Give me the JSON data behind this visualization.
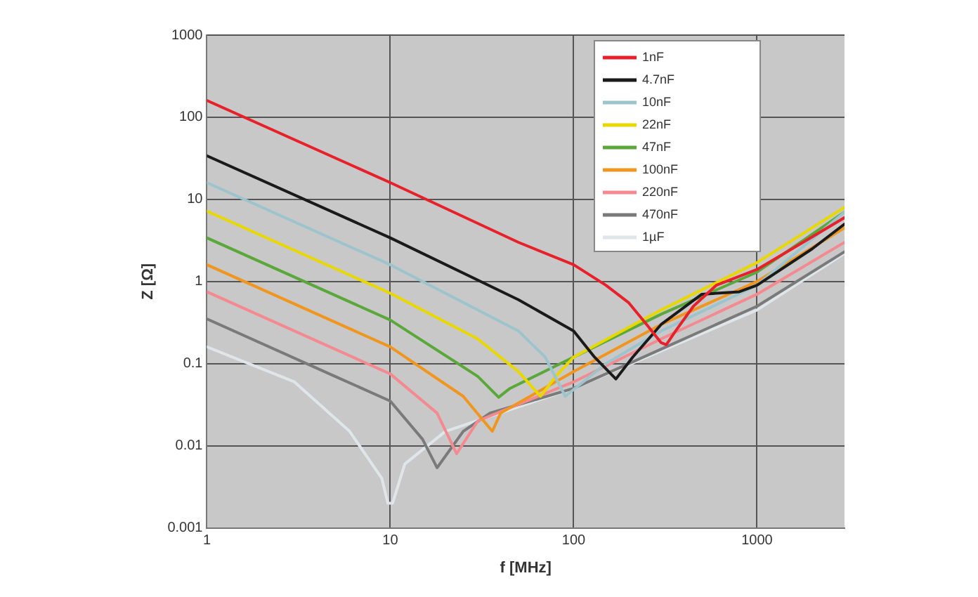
{
  "chart_data": {
    "type": "line",
    "xlabel": "f [MHz]",
    "ylabel": "Z [Ω]",
    "log": "xy",
    "xlim": [
      1,
      3000
    ],
    "xticks": [
      1,
      10,
      100,
      1000
    ],
    "ylim": [
      0.001,
      1000
    ],
    "yticks": [
      0.001,
      0.01,
      0.1,
      1,
      10,
      100,
      1000
    ],
    "grid": true,
    "legend": "top right",
    "marker": "none",
    "line_style": "solid",
    "series": [
      {
        "name": "1nF",
        "color": "#e8202a",
        "x": [
          1,
          10,
          50,
          100,
          150,
          200,
          250,
          300,
          320,
          360,
          450,
          600,
          1000,
          2000,
          3000
        ],
        "values": [
          160,
          16,
          3,
          1.6,
          0.9,
          0.55,
          0.3,
          0.18,
          0.17,
          0.25,
          0.5,
          0.9,
          1.4,
          3.5,
          6
        ]
      },
      {
        "name": "4.7nF",
        "color": "#1a1a1a",
        "x": [
          1,
          10,
          50,
          100,
          130,
          170,
          210,
          300,
          500,
          800,
          1000,
          2000,
          3000
        ],
        "values": [
          34,
          3.4,
          0.6,
          0.25,
          0.12,
          0.065,
          0.12,
          0.3,
          0.7,
          0.75,
          0.9,
          2.5,
          5
        ]
      },
      {
        "name": "10nF",
        "color": "#9cc4cc",
        "x": [
          1,
          10,
          50,
          70,
          90,
          150,
          300,
          1000,
          3000
        ],
        "values": [
          16,
          1.6,
          0.25,
          0.12,
          0.04,
          0.1,
          0.25,
          0.9,
          7
        ]
      },
      {
        "name": "22nF",
        "color": "#e8d800",
        "x": [
          1,
          10,
          30,
          50,
          66,
          80,
          100,
          300,
          1000,
          3000
        ],
        "values": [
          7.2,
          0.72,
          0.2,
          0.08,
          0.04,
          0.07,
          0.12,
          0.45,
          1.7,
          8
        ]
      },
      {
        "name": "47nF",
        "color": "#5aa83a",
        "x": [
          1,
          10,
          30,
          39,
          45,
          100,
          300,
          1000,
          3000
        ],
        "values": [
          3.4,
          0.34,
          0.07,
          0.039,
          0.05,
          0.12,
          0.4,
          1.3,
          7
        ]
      },
      {
        "name": "100nF",
        "color": "#f0961e",
        "x": [
          1,
          10,
          25,
          36,
          40,
          100,
          300,
          1000,
          3000
        ],
        "values": [
          1.6,
          0.16,
          0.04,
          0.015,
          0.025,
          0.08,
          0.3,
          1,
          4.5
        ]
      },
      {
        "name": "220nF",
        "color": "#f48a90",
        "x": [
          1,
          10,
          18,
          23,
          30,
          100,
          300,
          1000,
          3000
        ],
        "values": [
          0.75,
          0.075,
          0.025,
          0.008,
          0.02,
          0.06,
          0.2,
          0.7,
          3
        ]
      },
      {
        "name": "470nF",
        "color": "#7a7a7a",
        "x": [
          1,
          5,
          10,
          15,
          18,
          25,
          35,
          100,
          300,
          1000,
          3000
        ],
        "values": [
          0.35,
          0.07,
          0.035,
          0.012,
          0.0054,
          0.015,
          0.025,
          0.05,
          0.15,
          0.5,
          2.3
        ]
      },
      {
        "name": "1µF",
        "color": "#dfe6ea",
        "x": [
          1,
          3,
          6,
          9,
          9.7,
          10.3,
          12,
          20,
          100,
          1000,
          3000
        ],
        "values": [
          0.16,
          0.06,
          0.015,
          0.004,
          0.002,
          0.002,
          0.006,
          0.015,
          0.05,
          0.45,
          2.2
        ]
      }
    ]
  }
}
